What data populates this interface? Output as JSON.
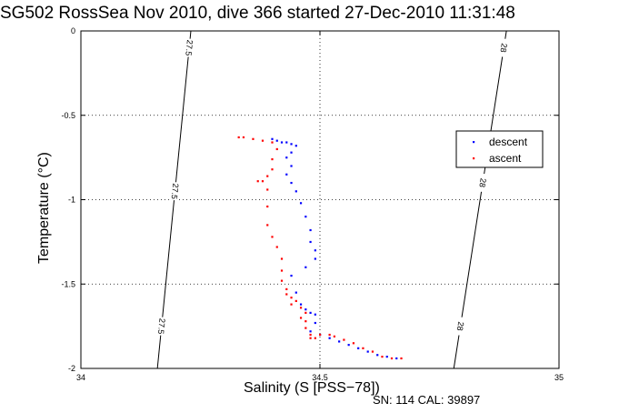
{
  "chart_data": {
    "type": "scatter",
    "title": "SG502 RossSea Nov 2010, dive 366 started 27-Dec-2010 11:31:48",
    "xlabel": "Salinity (S [PSS−78])",
    "ylabel": "Temperature (°C)",
    "footer": "SN: 114  CAL: 39897",
    "xlim": [
      34,
      35
    ],
    "ylim": [
      -2,
      0
    ],
    "x_ticks": [
      "34",
      "34.5",
      "35"
    ],
    "y_ticks": [
      "0",
      "-0.5",
      "-1",
      "-1.5",
      "-2"
    ],
    "grid": true,
    "legend_placement": "right",
    "series": [
      {
        "name": "descent",
        "color": "#0000ff",
        "points": [
          [
            34.4,
            -0.64
          ],
          [
            34.41,
            -0.65
          ],
          [
            34.42,
            -0.66
          ],
          [
            34.43,
            -0.66
          ],
          [
            34.44,
            -0.67
          ],
          [
            34.45,
            -0.68
          ],
          [
            34.44,
            -0.72
          ],
          [
            34.43,
            -0.75
          ],
          [
            34.44,
            -0.8
          ],
          [
            34.43,
            -0.85
          ],
          [
            34.44,
            -0.9
          ],
          [
            34.45,
            -0.95
          ],
          [
            34.46,
            -1.02
          ],
          [
            34.47,
            -1.1
          ],
          [
            34.48,
            -1.18
          ],
          [
            34.48,
            -1.25
          ],
          [
            34.49,
            -1.3
          ],
          [
            34.49,
            -1.35
          ],
          [
            34.47,
            -1.4
          ],
          [
            34.44,
            -1.45
          ],
          [
            34.45,
            -1.55
          ],
          [
            34.46,
            -1.62
          ],
          [
            34.47,
            -1.65
          ],
          [
            34.48,
            -1.67
          ],
          [
            34.49,
            -1.68
          ],
          [
            34.49,
            -1.73
          ],
          [
            34.48,
            -1.78
          ],
          [
            34.5,
            -1.8
          ],
          [
            34.52,
            -1.82
          ],
          [
            34.54,
            -1.84
          ],
          [
            34.56,
            -1.86
          ],
          [
            34.58,
            -1.88
          ],
          [
            34.6,
            -1.9
          ],
          [
            34.62,
            -1.92
          ],
          [
            34.64,
            -1.93
          ],
          [
            34.66,
            -1.94
          ]
        ]
      },
      {
        "name": "ascent",
        "color": "#ff0000",
        "points": [
          [
            34.33,
            -0.63
          ],
          [
            34.34,
            -0.63
          ],
          [
            34.36,
            -0.64
          ],
          [
            34.38,
            -0.65
          ],
          [
            34.4,
            -0.66
          ],
          [
            34.41,
            -0.7
          ],
          [
            34.4,
            -0.76
          ],
          [
            34.4,
            -0.82
          ],
          [
            34.39,
            -0.86
          ],
          [
            34.37,
            -0.89
          ],
          [
            34.38,
            -0.89
          ],
          [
            34.39,
            -0.94
          ],
          [
            34.39,
            -1.04
          ],
          [
            34.39,
            -1.15
          ],
          [
            34.4,
            -1.22
          ],
          [
            34.41,
            -1.28
          ],
          [
            34.42,
            -1.35
          ],
          [
            34.42,
            -1.42
          ],
          [
            34.42,
            -1.48
          ],
          [
            34.43,
            -1.53
          ],
          [
            34.43,
            -1.56
          ],
          [
            34.44,
            -1.58
          ],
          [
            34.45,
            -1.6
          ],
          [
            34.44,
            -1.62
          ],
          [
            34.46,
            -1.64
          ],
          [
            34.47,
            -1.67
          ],
          [
            34.46,
            -1.7
          ],
          [
            34.47,
            -1.72
          ],
          [
            34.47,
            -1.76
          ],
          [
            34.48,
            -1.8
          ],
          [
            34.48,
            -1.82
          ],
          [
            34.49,
            -1.82
          ],
          [
            34.5,
            -1.8
          ],
          [
            34.52,
            -1.8
          ],
          [
            34.53,
            -1.81
          ],
          [
            34.55,
            -1.83
          ],
          [
            34.57,
            -1.85
          ],
          [
            34.59,
            -1.88
          ],
          [
            34.61,
            -1.9
          ],
          [
            34.63,
            -1.93
          ],
          [
            34.65,
            -1.94
          ],
          [
            34.67,
            -1.94
          ]
        ]
      }
    ],
    "isopycnals": [
      {
        "label": "27.5",
        "x_top": 34.23,
        "x_bottom": 34.16,
        "label_positions": [
          -0.1,
          -0.95,
          -1.75
        ]
      },
      {
        "label": "28",
        "x_top": 34.89,
        "x_bottom": 34.78,
        "label_positions": [
          -0.1,
          -0.9,
          -1.75
        ]
      }
    ]
  }
}
